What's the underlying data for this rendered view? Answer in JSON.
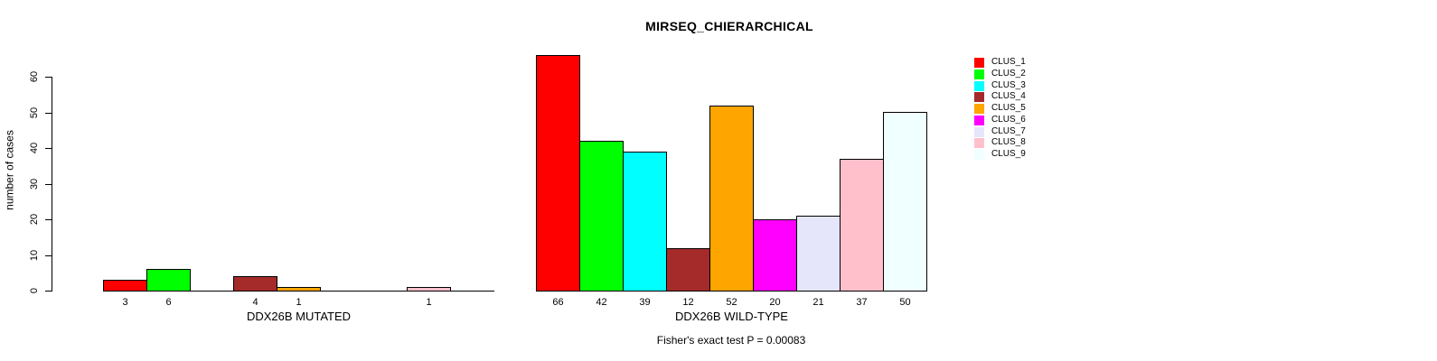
{
  "title": "MIRSEQ_CHIERARCHICAL",
  "chart_data": {
    "type": "bar",
    "title": "MIRSEQ_CHIERARCHICAL",
    "ylabel": "number of cases",
    "xlabel": "",
    "y_ticks": [
      0,
      10,
      20,
      30,
      40,
      50,
      60
    ],
    "ylim": [
      0,
      67
    ],
    "grid": false,
    "legend_position": "right",
    "legend_entries": [
      "CLUS_1",
      "CLUS_2",
      "CLUS_3",
      "CLUS_4",
      "CLUS_5",
      "CLUS_6",
      "CLUS_7",
      "CLUS_8",
      "CLUS_9"
    ],
    "colors": [
      "#FF0000",
      "#00FF00",
      "#00FFFF",
      "#A52A2A",
      "#FFA500",
      "#FF00FF",
      "#E6E6FA",
      "#FFC0CB",
      "#F0FFFF"
    ],
    "groups": [
      {
        "label": "DDX26B MUTATED",
        "values": [
          3,
          6,
          0,
          4,
          1,
          0,
          0,
          1,
          0
        ]
      },
      {
        "label": "DDX26B WILD-TYPE",
        "values": [
          66,
          42,
          39,
          12,
          52,
          20,
          21,
          37,
          50
        ]
      }
    ],
    "bar_value_labels_shown": true,
    "annotation": "Fisher's exact test P = 0.00083"
  }
}
